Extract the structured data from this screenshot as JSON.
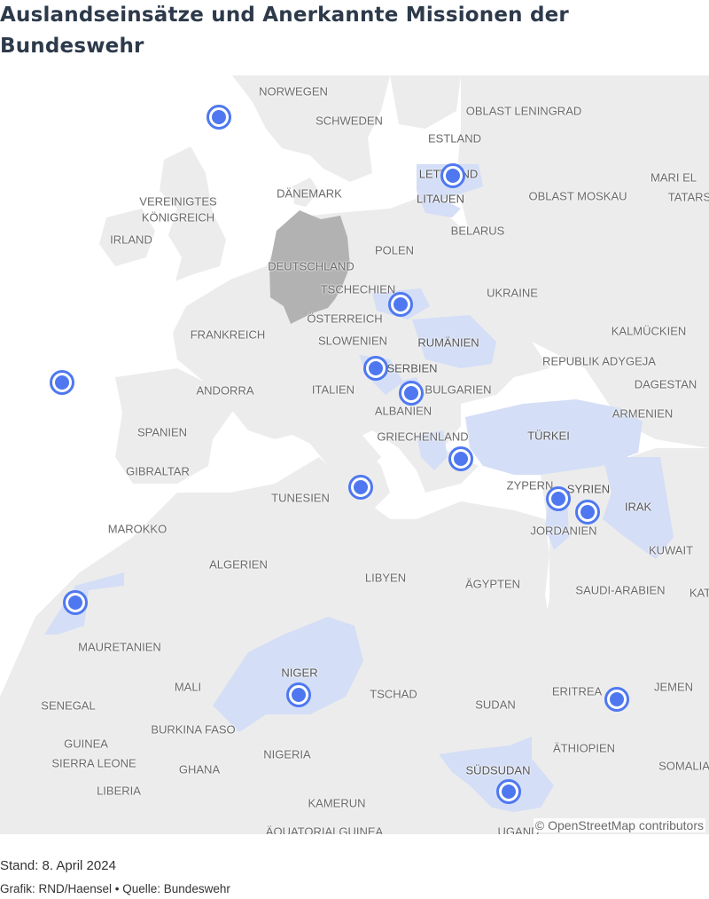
{
  "title": "Auslandseinsätze und Anerkannte Missionen der Bundeswehr",
  "footer": {
    "stand": "Stand: 8. April 2024",
    "credit": "Grafik: RND/Haensel • Quelle: Bundeswehr"
  },
  "attribution": "© OpenStreetMap contributors",
  "colors": {
    "land": "#ececec",
    "water": "#ffffff",
    "mission_country": "#d4def6",
    "germany": "#b2b2b2",
    "marker": "#4f78f0"
  },
  "labels": [
    {
      "text": "NORWEGEN"
    },
    {
      "text": "SCHWEDEN"
    },
    {
      "text": "OBLAST LENINGRAD"
    },
    {
      "text": "ESTLAND"
    },
    {
      "text": "LETTLAND"
    },
    {
      "text": "MARI EL"
    },
    {
      "text": "DÄNEMARK"
    },
    {
      "text": "OBLAST MOSKAU"
    },
    {
      "text": "TATARS"
    },
    {
      "text": "VEREINIGTES"
    },
    {
      "text": "KÖNIGREICH"
    },
    {
      "text": "LITAUEN"
    },
    {
      "text": "IRLAND"
    },
    {
      "text": "BELARUS"
    },
    {
      "text": "POLEN"
    },
    {
      "text": "DEUTSCHLAND"
    },
    {
      "text": "TSCHECHIEN"
    },
    {
      "text": "UKRAINE"
    },
    {
      "text": "ÖSTERREICH"
    },
    {
      "text": "FRANKREICH"
    },
    {
      "text": "SLOWENIEN"
    },
    {
      "text": "RUMÄNIEN"
    },
    {
      "text": "KALMÜCKIEN"
    },
    {
      "text": "REPUBLIK ADYGEJA"
    },
    {
      "text": "SERBIEN"
    },
    {
      "text": "ANDORRA"
    },
    {
      "text": "ITALIEN"
    },
    {
      "text": "BULGARIEN"
    },
    {
      "text": "DAGESTAN"
    },
    {
      "text": "ALBANIEN"
    },
    {
      "text": "ARMENIEN"
    },
    {
      "text": "SPANIEN"
    },
    {
      "text": "GRIECHENLAND"
    },
    {
      "text": "TÜRKEI"
    },
    {
      "text": "GIBRALTAR"
    },
    {
      "text": "ZYPERN"
    },
    {
      "text": "SYRIEN"
    },
    {
      "text": "TUNESIEN"
    },
    {
      "text": "IRAK"
    },
    {
      "text": "MAROKKO"
    },
    {
      "text": "JORDANIEN"
    },
    {
      "text": "KUWAIT"
    },
    {
      "text": "ALGERIEN"
    },
    {
      "text": "LIBYEN"
    },
    {
      "text": "ÄGYPTEN"
    },
    {
      "text": "SAUDI-ARABIEN"
    },
    {
      "text": "KAT"
    },
    {
      "text": "MAURETANIEN"
    },
    {
      "text": "NIGER"
    },
    {
      "text": "MALI"
    },
    {
      "text": "TSCHAD"
    },
    {
      "text": "ERITREA"
    },
    {
      "text": "JEMEN"
    },
    {
      "text": "SENEGAL"
    },
    {
      "text": "SUDAN"
    },
    {
      "text": "BURKINA FASO"
    },
    {
      "text": "GUINEA"
    },
    {
      "text": "ÄTHIOPIEN"
    },
    {
      "text": "NIGERIA"
    },
    {
      "text": "SIERRA LEONE"
    },
    {
      "text": "GHANA"
    },
    {
      "text": "SÜDSUDAN"
    },
    {
      "text": "SOMALIA"
    },
    {
      "text": "LIBERIA"
    },
    {
      "text": "KAMERUN"
    },
    {
      "text": "ÄQUATORIALGUINEA"
    },
    {
      "text": "UGAND"
    }
  ],
  "markers": [
    {
      "name": "marker-norwegian-sea"
    },
    {
      "name": "marker-lettland"
    },
    {
      "name": "marker-atlantic"
    },
    {
      "name": "marker-hungary-slovakia"
    },
    {
      "name": "marker-bosnia"
    },
    {
      "name": "marker-kosovo"
    },
    {
      "name": "marker-aegean"
    },
    {
      "name": "marker-mediterranean"
    },
    {
      "name": "marker-lebanon"
    },
    {
      "name": "marker-syria-iraq"
    },
    {
      "name": "marker-western-sahara"
    },
    {
      "name": "marker-niger"
    },
    {
      "name": "marker-red-sea"
    },
    {
      "name": "marker-suedsudan"
    }
  ]
}
